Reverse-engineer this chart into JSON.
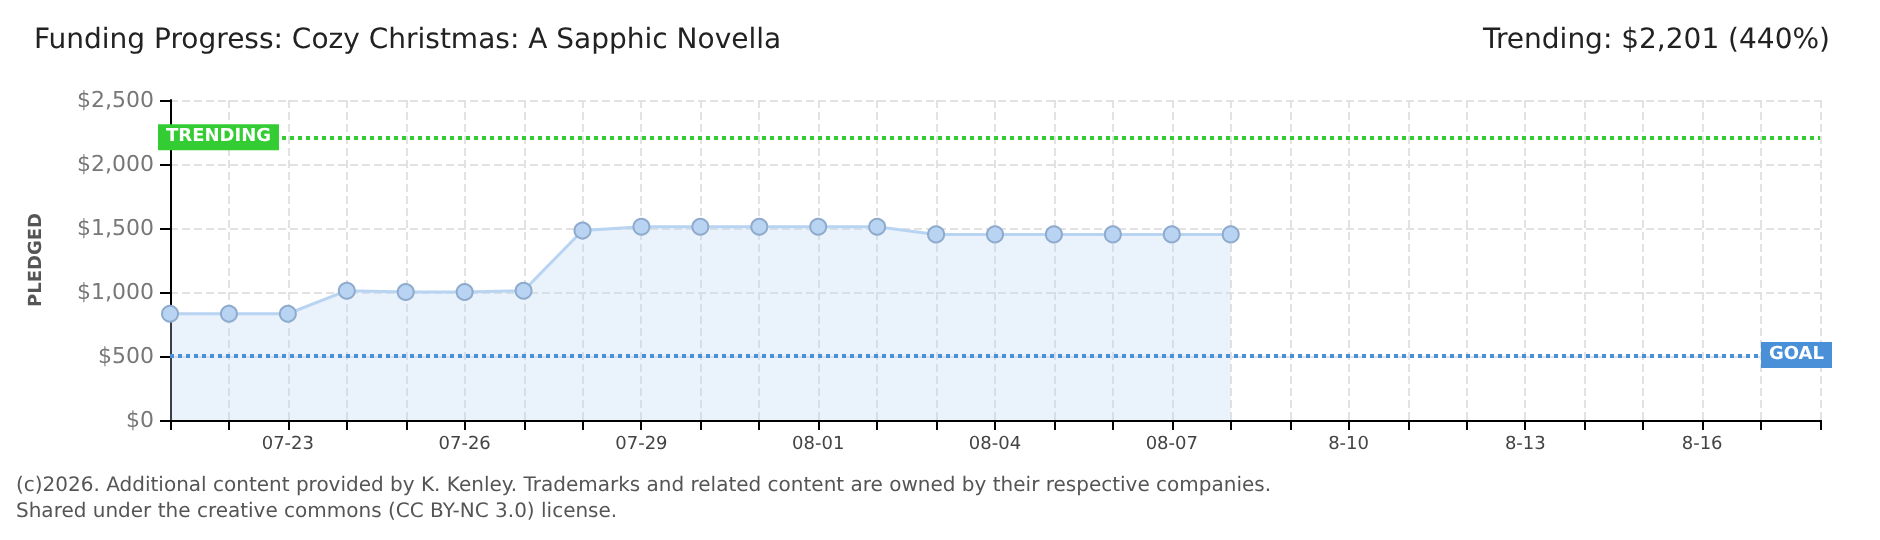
{
  "chart_data": {
    "type": "area",
    "title": "Funding Progress: Cozy Christmas: A Sapphic Novella",
    "subtitle": "Trending: $2,201 (440%)",
    "ylabel": "PLEDGED",
    "categories": [
      null,
      null,
      "07-23",
      null,
      null,
      "07-26",
      null,
      null,
      "07-29",
      null,
      null,
      "08-01",
      null,
      null,
      "08-04",
      null,
      null,
      "08-07",
      null,
      null,
      "8-10",
      null,
      null,
      "8-13",
      null,
      null,
      "8-16",
      null,
      null
    ],
    "series": [
      {
        "color": "#b8d4f2",
        "values": [
          830,
          830,
          830,
          1010,
          1000,
          1000,
          1010,
          1480,
          1510,
          1510,
          1510,
          1510,
          1510,
          1450,
          1450,
          1450,
          1450,
          1450,
          1450,
          null,
          null,
          null,
          null,
          null,
          null,
          null,
          null,
          null,
          null
        ]
      }
    ],
    "ylim": [
      0,
      2500
    ],
    "yticks": [
      {
        "value": 0,
        "label": "$0"
      },
      {
        "value": 500,
        "label": "$500"
      },
      {
        "value": 1000,
        "label": "$1,000"
      },
      {
        "value": 1500,
        "label": "$1,500"
      },
      {
        "value": 2000,
        "label": "$2,000"
      },
      {
        "value": 2500,
        "label": "$2,500"
      }
    ],
    "ref_lines": [
      {
        "axis": "y",
        "value": 2201,
        "label": "TRENDING",
        "color": "#33cc33",
        "line_style": "dotted"
      },
      {
        "axis": "y",
        "value": 500,
        "label": "GOAL",
        "color": "#4a90d9",
        "line_style": "dotted"
      }
    ],
    "annotations": [
      "(c)2026. Additional content provided by K. Kenley. Trademarks and related content are owned by their respective companies.",
      "Shared under the creative commons (CC BY-NC 3.0) license."
    ],
    "grid": true,
    "marker": "circle",
    "line_style": "solid"
  }
}
